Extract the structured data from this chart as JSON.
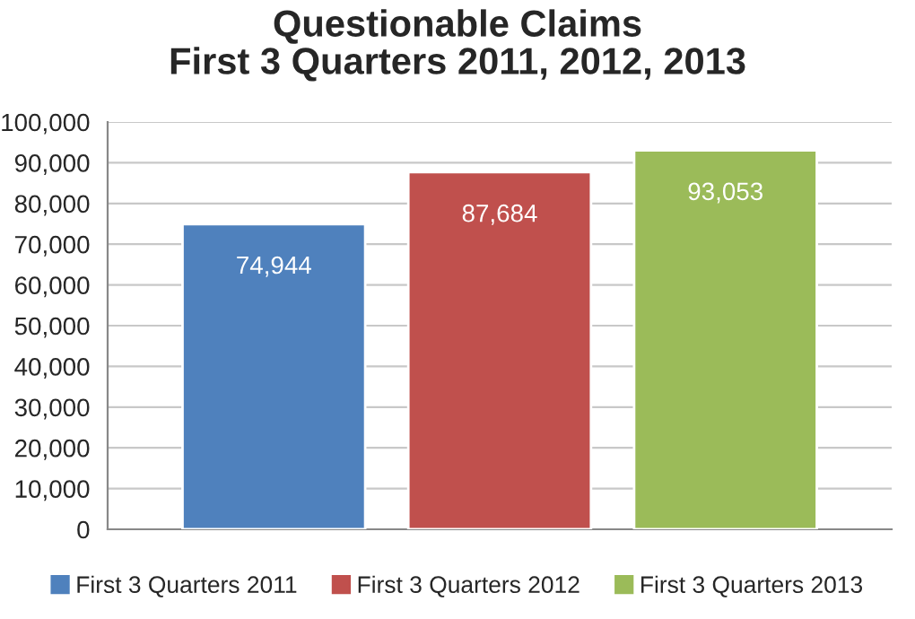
{
  "chart_data": {
    "type": "bar",
    "title": "Questionable Claims\nFirst 3 Quarters 2011, 2012, 2013",
    "categories": [
      null
    ],
    "series": [
      {
        "name": "First 3 Quarters 2011",
        "color": "#4f81bd",
        "values": [
          74944
        ],
        "value_labels": [
          "74,944"
        ]
      },
      {
        "name": "First 3 Quarters 2012",
        "color": "#c0504d",
        "values": [
          87684
        ],
        "value_labels": [
          "87,684"
        ]
      },
      {
        "name": "First 3 Quarters 2013",
        "color": "#9bbb59",
        "values": [
          93053
        ],
        "value_labels": [
          "93,053"
        ]
      }
    ],
    "ylim": [
      0,
      100000
    ],
    "yticks": [
      0,
      {
        "value": 10000,
        "label": "10,000"
      },
      {
        "value": 20000,
        "label": "20,000"
      },
      {
        "value": 30000,
        "label": "30,000"
      },
      {
        "value": 40000,
        "label": "40,000"
      },
      {
        "value": 50000,
        "label": "50,000"
      },
      {
        "value": 60000,
        "label": "60,000"
      },
      {
        "value": 70000,
        "label": "70,000"
      },
      {
        "value": 80000,
        "label": "80,000"
      },
      {
        "value": 90000,
        "label": "90,000"
      },
      {
        "value": 100000,
        "label": "100,000"
      }
    ],
    "grid": "y",
    "legend": "bottom"
  }
}
